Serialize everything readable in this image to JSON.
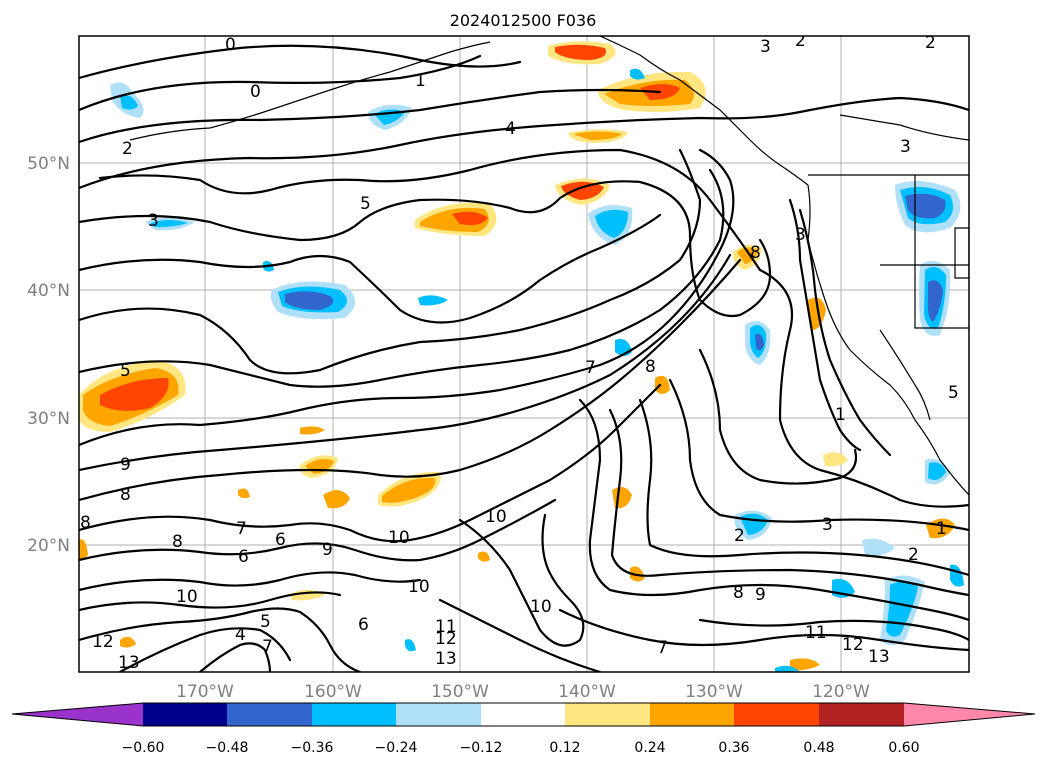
{
  "title": "2024012500 F036",
  "map": {
    "lat_labels": [
      "50°N",
      "40°N",
      "30°N",
      "20°N"
    ],
    "lon_labels": [
      "170°W",
      "160°W",
      "150°W",
      "140°W",
      "130°W",
      "120°W"
    ],
    "contour_labels": [
      "0",
      "0",
      "1",
      "2",
      "3",
      "4",
      "5",
      "5",
      "3",
      "3",
      "2",
      "2",
      "3",
      "8",
      "7",
      "8",
      "9",
      "8",
      "8",
      "9",
      "7",
      "6",
      "8",
      "6",
      "10",
      "10",
      "10",
      "10",
      "11",
      "12",
      "13",
      "12",
      "13",
      "5",
      "6",
      "4",
      "7",
      "8",
      "9",
      "2",
      "3",
      "1",
      "11",
      "12",
      "13",
      "7",
      "10",
      "5",
      "1",
      "2"
    ]
  },
  "colorbar": {
    "ticks": [
      "−0.60",
      "−0.48",
      "−0.36",
      "−0.24",
      "−0.12",
      "0.12",
      "0.24",
      "0.36",
      "0.48",
      "0.60"
    ],
    "colors": [
      "#9933cc",
      "#00008b",
      "#3366cc",
      "#00bfff",
      "#b0e0f8",
      "#ffffff",
      "#ffe680",
      "#ffa500",
      "#ff4500",
      "#b22222",
      "#ff88aa"
    ]
  }
}
